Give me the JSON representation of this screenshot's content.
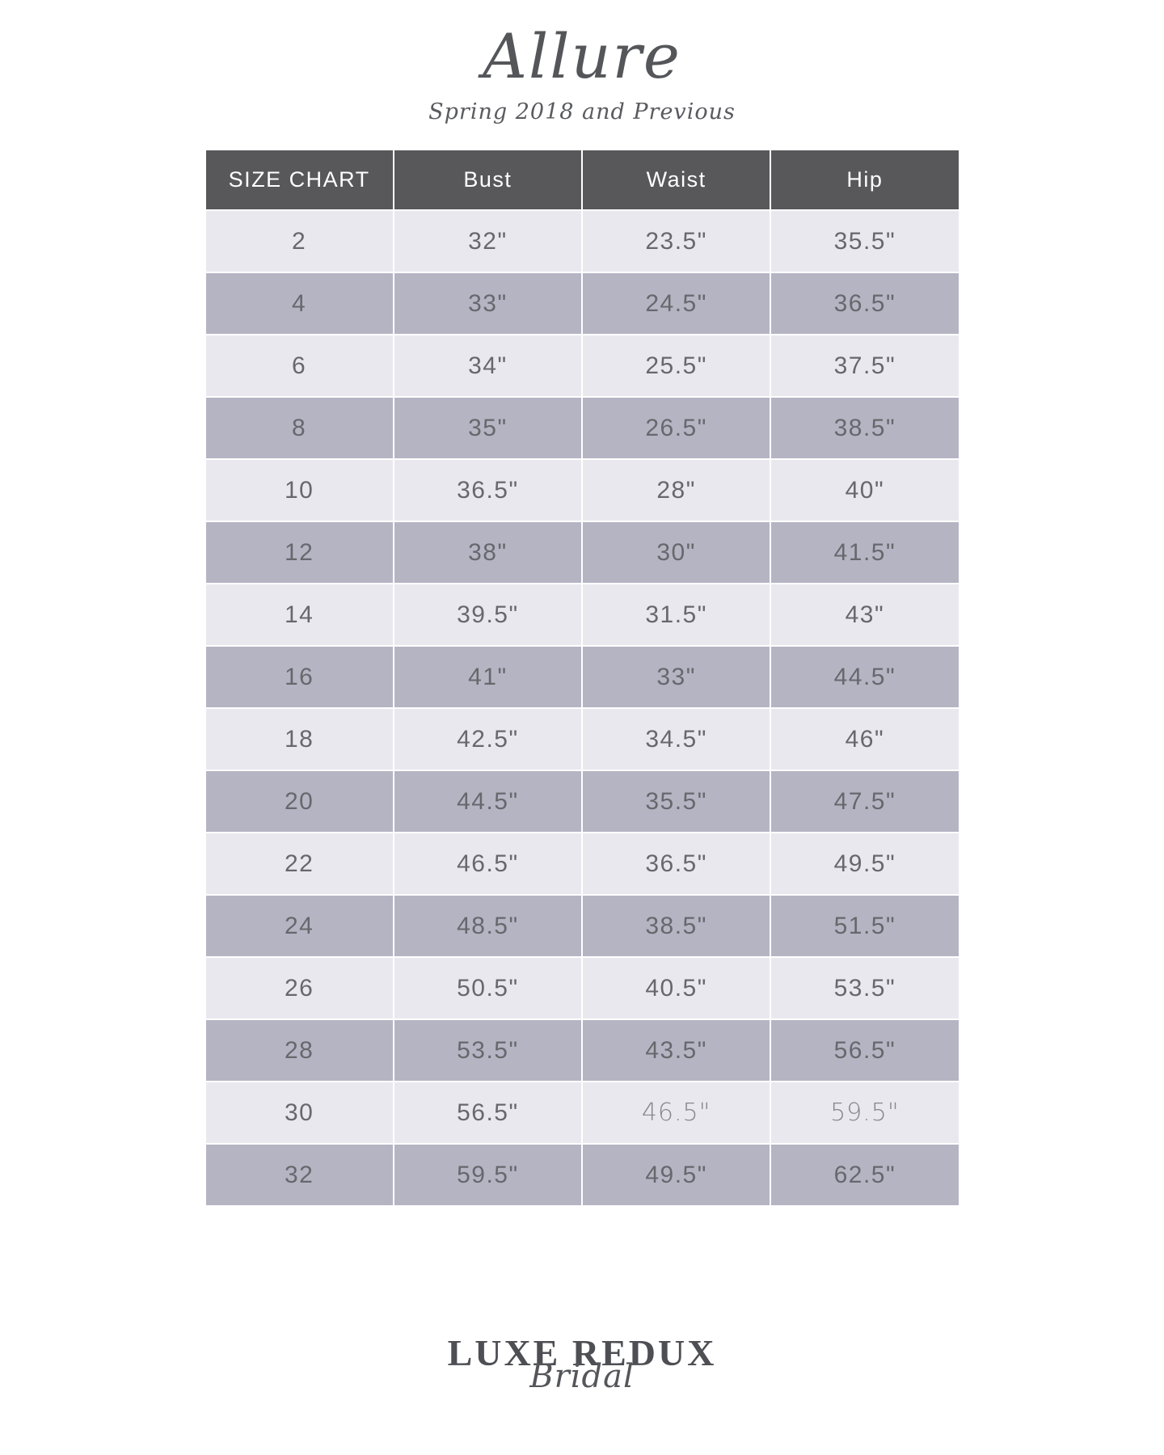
{
  "header": {
    "title": "Allure",
    "subtitle": "Spring 2018 and Previous"
  },
  "table": {
    "columns": [
      "SIZE CHART",
      "Bust",
      "Waist",
      "Hip"
    ],
    "rows": [
      {
        "size": "2",
        "bust": "32\"",
        "waist": "23.5\"",
        "hip": "35.5\""
      },
      {
        "size": "4",
        "bust": "33\"",
        "waist": "24.5\"",
        "hip": "36.5\""
      },
      {
        "size": "6",
        "bust": "34\"",
        "waist": "25.5\"",
        "hip": "37.5\""
      },
      {
        "size": "8",
        "bust": "35\"",
        "waist": "26.5\"",
        "hip": "38.5\""
      },
      {
        "size": "10",
        "bust": "36.5\"",
        "waist": "28\"",
        "hip": "40\""
      },
      {
        "size": "12",
        "bust": "38\"",
        "waist": "30\"",
        "hip": "41.5\""
      },
      {
        "size": "14",
        "bust": "39.5\"",
        "waist": "31.5\"",
        "hip": "43\""
      },
      {
        "size": "16",
        "bust": "41\"",
        "waist": "33\"",
        "hip": "44.5\""
      },
      {
        "size": "18",
        "bust": "42.5\"",
        "waist": "34.5\"",
        "hip": "46\""
      },
      {
        "size": "20",
        "bust": "44.5\"",
        "waist": "35.5\"",
        "hip": "47.5\""
      },
      {
        "size": "22",
        "bust": "46.5\"",
        "waist": "36.5\"",
        "hip": "49.5\""
      },
      {
        "size": "24",
        "bust": "48.5\"",
        "waist": "38.5\"",
        "hip": "51.5\""
      },
      {
        "size": "26",
        "bust": "50.5\"",
        "waist": "40.5\"",
        "hip": "53.5\""
      },
      {
        "size": "28",
        "bust": "53.5\"",
        "waist": "43.5\"",
        "hip": "56.5\""
      },
      {
        "size": "30",
        "bust": "56.5\"",
        "waist": "46.5\"",
        "hip": "59.5\"",
        "alt_style_fields": [
          "waist",
          "hip"
        ]
      },
      {
        "size": "32",
        "bust": "59.5\"",
        "waist": "49.5\"",
        "hip": "62.5\""
      }
    ]
  },
  "footer": {
    "wordmark": "LUXE REDUX",
    "script": "Bridal"
  },
  "colors": {
    "header_bg": "#58585B",
    "row_light": "#E9E8EE",
    "row_dark": "#B5B4C3",
    "cell_text": "#68676D",
    "cell_text_muted": "#87868D",
    "header_text": "#FFFFFF",
    "title_color": "#55565A",
    "logo_color": "#4E4F54"
  }
}
